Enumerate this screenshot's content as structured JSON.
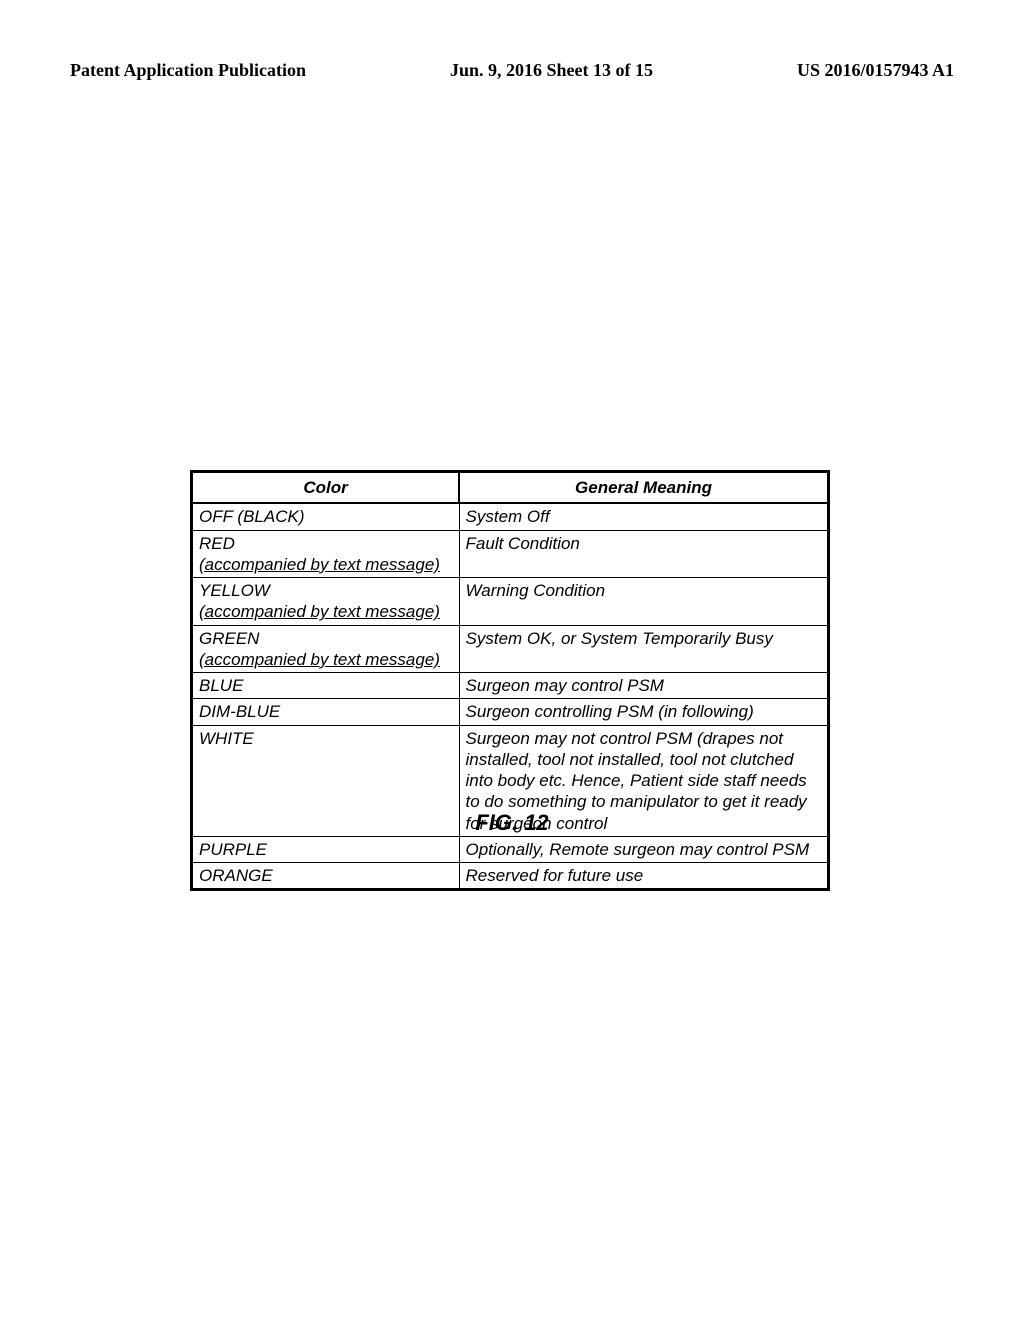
{
  "header": {
    "left": "Patent Application Publication",
    "center": "Jun. 9, 2016   Sheet 13 of 15",
    "right": "US 2016/0157943 A1"
  },
  "table": {
    "columns": [
      "Color",
      "General Meaning"
    ],
    "rows": [
      {
        "color": "OFF (BLACK)",
        "sub": "",
        "meaning": "System Off",
        "underline": false
      },
      {
        "color": "RED",
        "sub": "(accompanied by text message)",
        "meaning": "Fault Condition",
        "underline": true
      },
      {
        "color": "YELLOW",
        "sub": "(accompanied by text message)",
        "meaning": "Warning Condition",
        "underline": true
      },
      {
        "color": "GREEN",
        "sub": "(accompanied by text message)",
        "meaning": "System OK, or System Temporarily Busy",
        "underline": true
      },
      {
        "color": "BLUE",
        "sub": "",
        "meaning": "Surgeon may control PSM",
        "underline": false
      },
      {
        "color": "DIM-BLUE",
        "sub": "",
        "meaning": "Surgeon controlling PSM (in following)",
        "underline": false
      },
      {
        "color": "WHITE",
        "sub": "",
        "meaning": "Surgeon may not control PSM (drapes not installed, tool not installed, tool not clutched into body etc.  Hence, Patient side staff needs to do something to manipulator to get it ready for surgeon control",
        "underline": false
      },
      {
        "color": "PURPLE",
        "sub": "",
        "meaning": "Optionally, Remote surgeon may control PSM",
        "underline": false
      },
      {
        "color": "ORANGE",
        "sub": "",
        "meaning": "Reserved for future use",
        "underline": false
      }
    ]
  },
  "figure_label": "FIG. 12"
}
